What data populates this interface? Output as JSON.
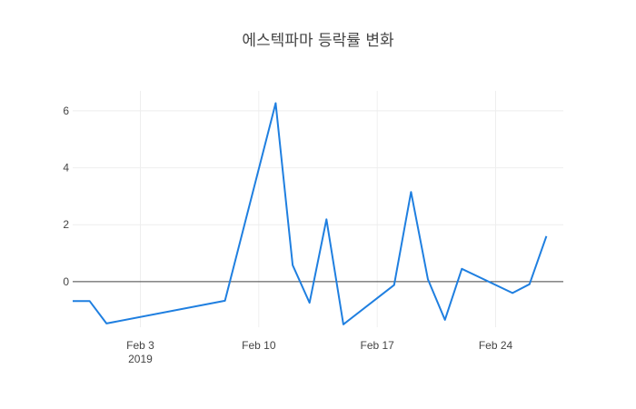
{
  "chart_data": {
    "type": "line",
    "title": "에스텍파마 등락률 변화",
    "xlabel": "",
    "ylabel": "",
    "x_range": [
      "2019-01-30",
      "2019-02-28"
    ],
    "ylim": [
      -1.6,
      6.7
    ],
    "grid": true,
    "zero_line": true,
    "x_ticks": [
      {
        "date": "2019-02-03",
        "label": "Feb 3",
        "sublabel": "2019"
      },
      {
        "date": "2019-02-10",
        "label": "Feb 10",
        "sublabel": ""
      },
      {
        "date": "2019-02-17",
        "label": "Feb 17",
        "sublabel": ""
      },
      {
        "date": "2019-02-24",
        "label": "Feb 24",
        "sublabel": ""
      }
    ],
    "y_ticks": [
      0,
      2,
      4,
      6
    ],
    "series": [
      {
        "color": "#1f7fe0",
        "x": [
          "2019-01-30",
          "2019-01-31",
          "2019-02-01",
          "2019-02-08",
          "2019-02-11",
          "2019-02-12",
          "2019-02-13",
          "2019-02-14",
          "2019-02-15",
          "2019-02-18",
          "2019-02-19",
          "2019-02-20",
          "2019-02-21",
          "2019-02-22",
          "2019-02-25",
          "2019-02-26",
          "2019-02-27"
        ],
        "values": [
          -0.68,
          -0.68,
          -1.47,
          -0.67,
          6.27,
          0.58,
          -0.74,
          2.19,
          -1.5,
          -0.12,
          3.15,
          0.08,
          -1.34,
          0.45,
          -0.4,
          -0.09,
          1.6
        ]
      }
    ]
  }
}
